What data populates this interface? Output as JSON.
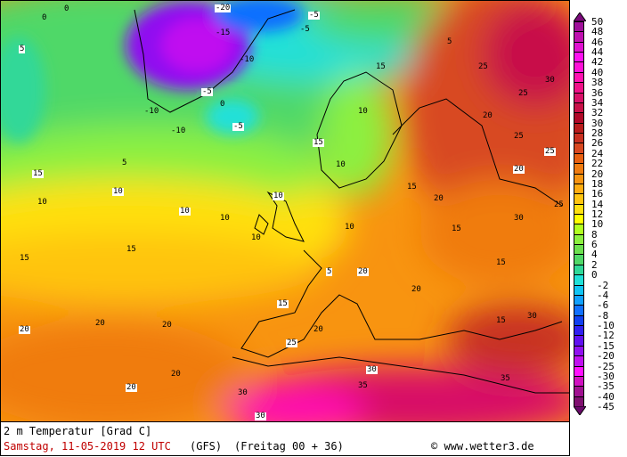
{
  "title": "2 m Temperatur [Grad C]",
  "valid_time": "Samstag, 11-05-2019  12 UTC",
  "model": "(GFS)",
  "run": "(Freitag 00 + 36)",
  "copyright": "© www.wetter3.de",
  "legend": {
    "ticks": [
      "50",
      "48",
      "46",
      "44",
      "42",
      "40",
      "38",
      "36",
      "34",
      "32",
      "30",
      "28",
      "26",
      "24",
      "22",
      "20",
      "18",
      "16",
      "14",
      "12",
      "10",
      "8",
      "6",
      "4",
      "2",
      "0",
      "-2",
      "-4",
      "-6",
      "-8",
      "-10",
      "-12",
      "-15",
      "-20",
      "-25",
      "-30",
      "-35",
      "-40",
      "-45"
    ],
    "colors": [
      "#a0109a",
      "#c010b0",
      "#e010d0",
      "#ff10f0",
      "#ff10d8",
      "#ff10b0",
      "#f01088",
      "#d81068",
      "#c81048",
      "#b00828",
      "#b81c1c",
      "#c83020",
      "#d84820",
      "#e86010",
      "#f07c10",
      "#f89410",
      "#ffac10",
      "#ffc410",
      "#ffe010",
      "#ffff00",
      "#b0ff20",
      "#8cf040",
      "#6ce050",
      "#50d868",
      "#30d898",
      "#20e0d8",
      "#10c4f4",
      "#10a0ff",
      "#1070ff",
      "#1040f0",
      "#3020f0",
      "#6010f0",
      "#9010f0",
      "#c010f0",
      "#ff10ff",
      "#d010c0",
      "#a01090",
      "#801070"
    ],
    "top_color": "#7a0a7a",
    "bottom_color": "#6a0a6a"
  },
  "map_labels": [
    "-20",
    "-15",
    "-10",
    "-5",
    "-10",
    "-5",
    "-5",
    "0",
    "0",
    "5",
    "5",
    "5",
    "10",
    "10",
    "10",
    "10",
    "10",
    "10",
    "15",
    "15",
    "15",
    "15",
    "15",
    "15",
    "20",
    "20",
    "20",
    "20",
    "20",
    "20",
    "20",
    "25",
    "25",
    "25",
    "25",
    "30",
    "30",
    "30",
    "30",
    "30",
    "35",
    "35",
    "10",
    "15",
    "20",
    "5",
    "0",
    "-10",
    "-5",
    "10",
    "15",
    "20",
    "25",
    "20",
    "15",
    "10",
    "30",
    "25",
    "20",
    "15"
  ]
}
